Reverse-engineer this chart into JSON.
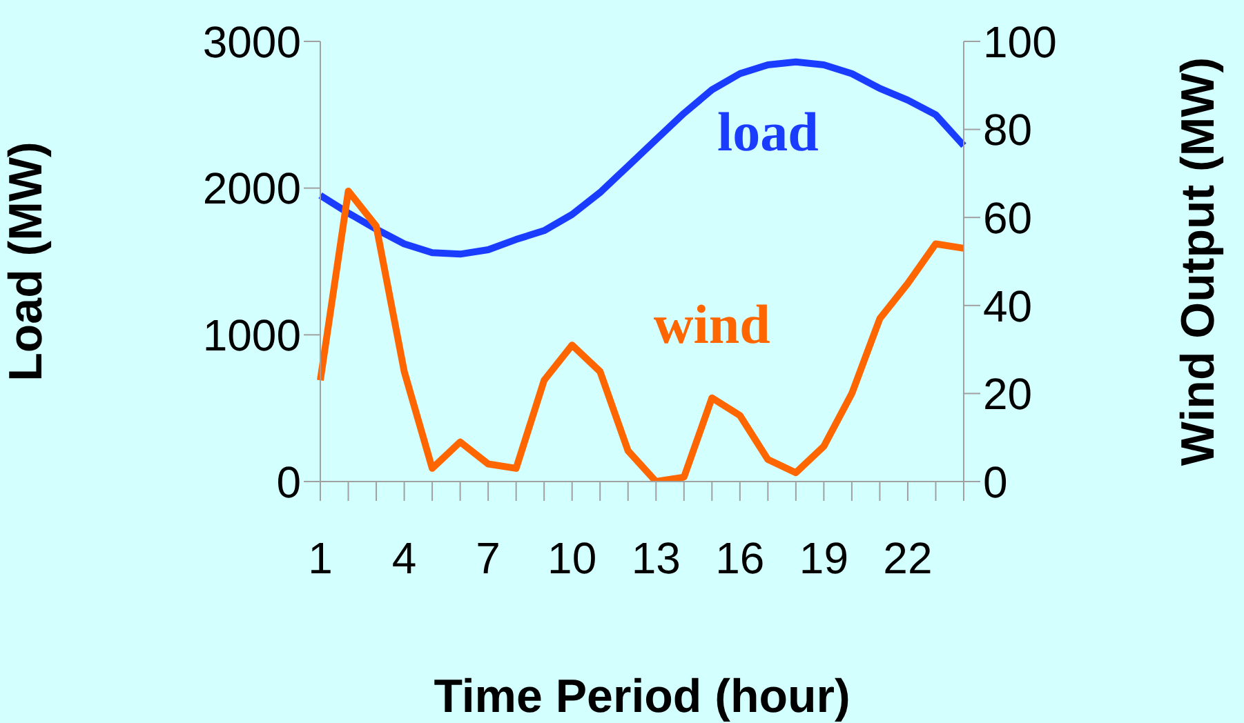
{
  "chart_data": {
    "type": "line",
    "xlabel": "Time Period (hour)",
    "ylabel": "Load (MW)",
    "y2label": "Wind Output (MW)",
    "categories": [
      "1",
      null,
      null,
      "4",
      null,
      null,
      "7",
      null,
      null,
      "10",
      null,
      null,
      "13",
      null,
      null,
      "16",
      null,
      null,
      "19",
      null,
      null,
      "22",
      null,
      null
    ],
    "ylim": [
      0,
      3000
    ],
    "yticks": [
      0,
      1000,
      2000,
      3000
    ],
    "y2lim": [
      0,
      100
    ],
    "y2ticks": [
      0,
      20,
      40,
      60,
      80,
      100
    ],
    "marker": "none",
    "line_style": "solid",
    "series": [
      {
        "name": "load",
        "color": "#1a3cff",
        "values": [
          1950,
          1830,
          1720,
          1620,
          1560,
          1550,
          1580,
          1650,
          1710,
          1820,
          1970,
          2150,
          2330,
          2510,
          2670,
          2780,
          2840,
          2860,
          2840,
          2780,
          2680,
          2600,
          2500,
          2290
        ]
      },
      {
        "name": "wind",
        "color": "#ff6600",
        "axis": "y2",
        "values": [
          23,
          66,
          58,
          25,
          3,
          9,
          4,
          3,
          23,
          31,
          25,
          7,
          0,
          1,
          19,
          15,
          5,
          2,
          8,
          20,
          37,
          45,
          54,
          53
        ]
      }
    ]
  }
}
